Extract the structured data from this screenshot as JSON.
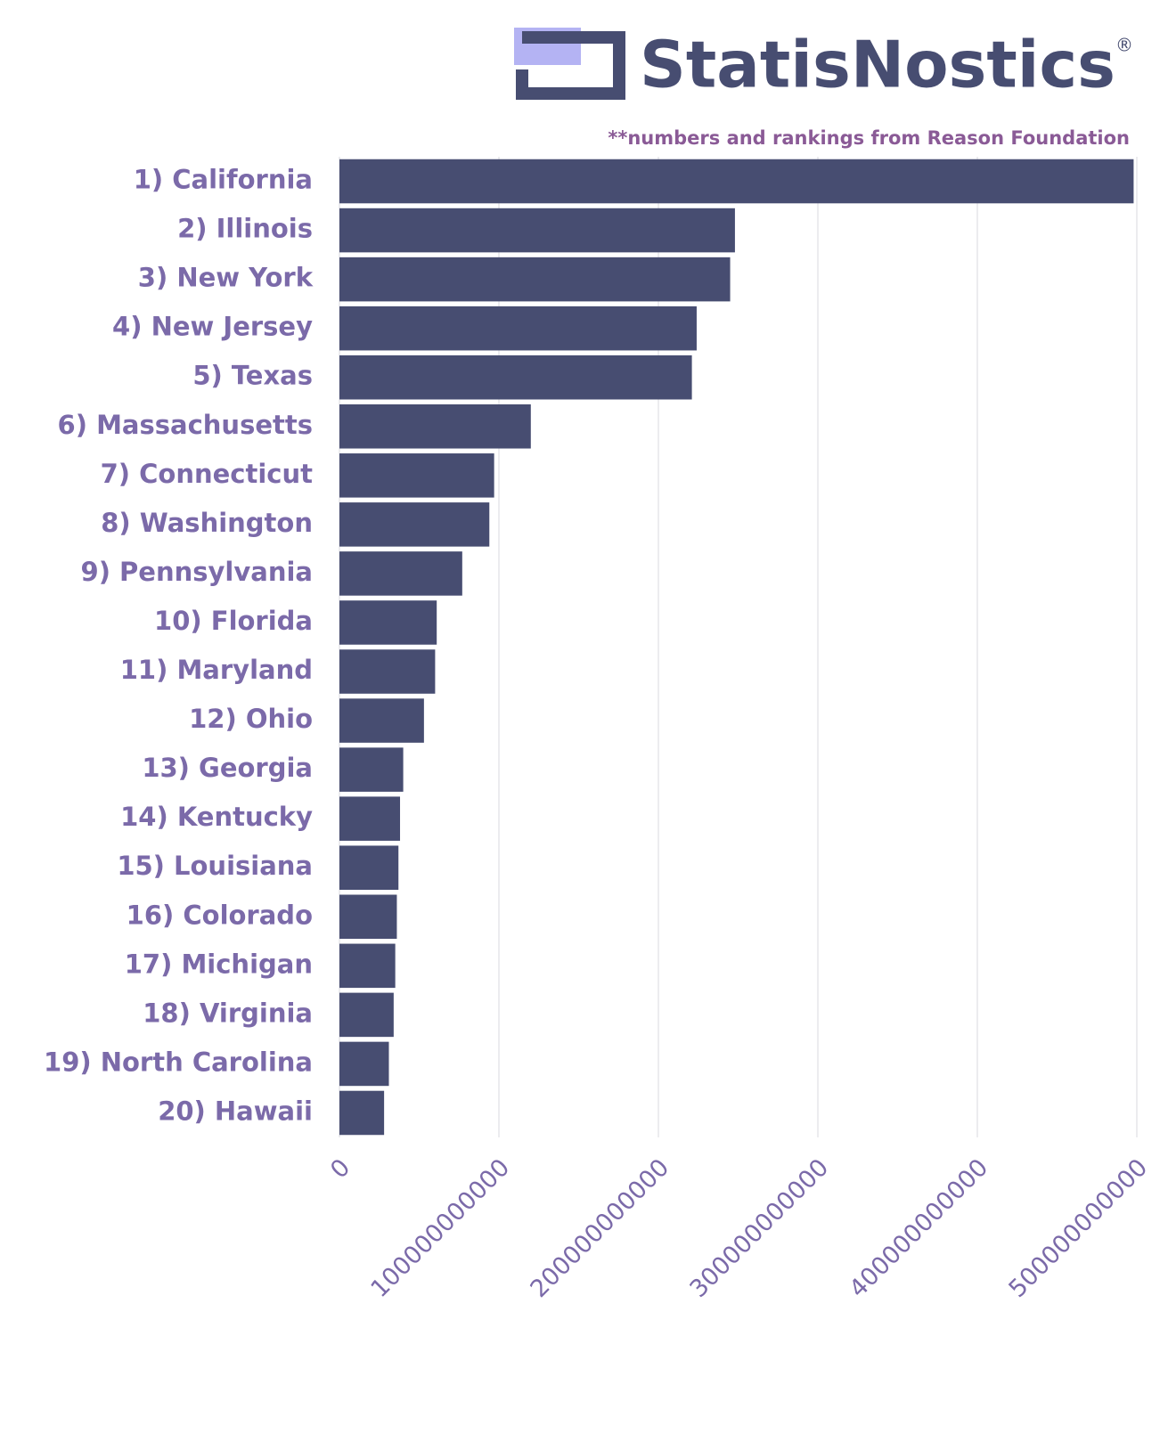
{
  "chart_data": {
    "type": "bar",
    "orientation": "horizontal",
    "brand": "StatisNostics",
    "brand_mark": "®",
    "note": "**numbers and rankings from Reason Foundation",
    "categories": [
      "1) California",
      "2) Illinois",
      "3) New York",
      "4) New Jersey",
      "5) Texas",
      "6) Massachusetts",
      "7) Connecticut",
      "8) Washington",
      "9) Pennsylvania",
      "10) Florida",
      "11) Maryland",
      "12) Ohio",
      "13) Georgia",
      "14) Kentucky",
      "15) Louisiana",
      "16) Colorado",
      "17) Michigan",
      "18) Virginia",
      "19) North Carolina",
      "20) Hawaii"
    ],
    "values": [
      498000000000,
      248000000000,
      245000000000,
      224000000000,
      221000000000,
      120000000000,
      97000000000,
      94000000000,
      77000000000,
      61000000000,
      60000000000,
      53000000000,
      40000000000,
      38000000000,
      37000000000,
      36000000000,
      35000000000,
      34000000000,
      31000000000,
      28000000000
    ],
    "color": "#474d71",
    "xlim": [
      0,
      500000000000
    ],
    "xticks": [
      0,
      100000000000,
      200000000000,
      300000000000,
      400000000000,
      500000000000
    ],
    "grid": true
  }
}
